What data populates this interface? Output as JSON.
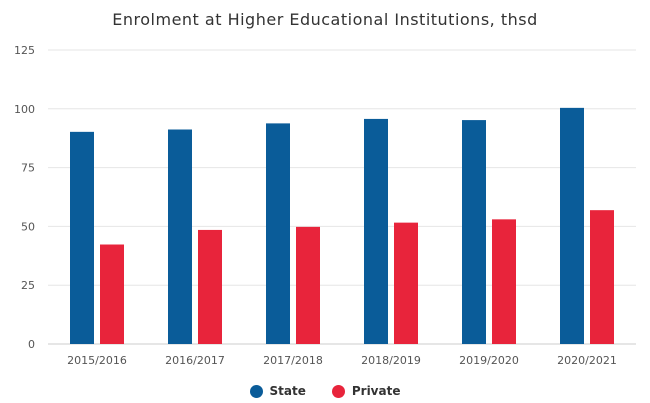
{
  "chart_data": {
    "type": "bar",
    "title": "Enrolment at Higher Educational Institutions, thsd",
    "categories": [
      "2015/2016",
      "2016/2017",
      "2017/2018",
      "2018/2019",
      "2019/2020",
      "2020/2021"
    ],
    "series": [
      {
        "name": "State",
        "color": "#0a5c99",
        "values": [
          90.2,
          91.2,
          93.8,
          95.7,
          95.2,
          100.4
        ]
      },
      {
        "name": "Private",
        "color": "#e8243b",
        "values": [
          42.3,
          48.5,
          49.8,
          51.6,
          53.0,
          56.9
        ]
      }
    ],
    "ylim": [
      0,
      125
    ],
    "yticks": [
      "0",
      "25",
      "50",
      "75",
      "100",
      "125"
    ],
    "grid": true,
    "legend": "bottom-center"
  }
}
